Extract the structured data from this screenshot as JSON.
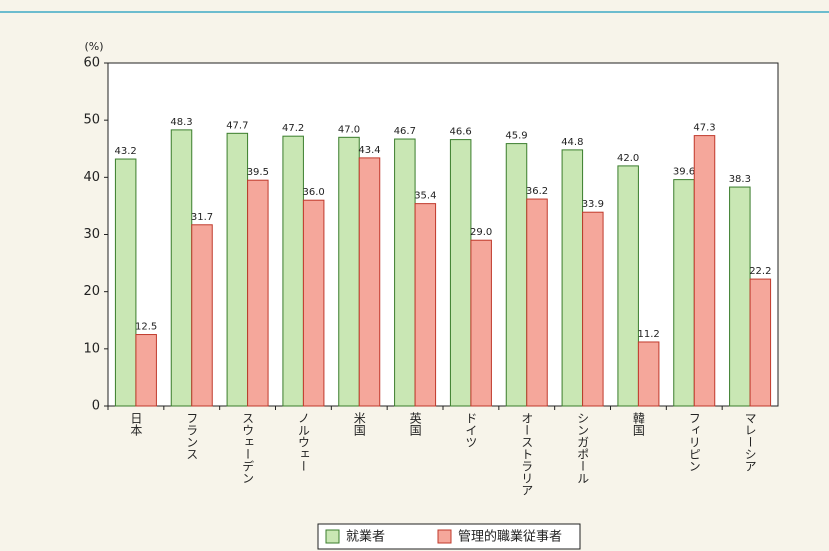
{
  "chart_data": {
    "type": "bar",
    "y_label": "(%)",
    "categories": [
      "日本",
      "フランス",
      "スウェーデン",
      "ノルウェー",
      "米国",
      "英国",
      "ドイツ",
      "オーストラリア",
      "シンガポール",
      "韓国",
      "フィリピン",
      "マレーシア"
    ],
    "series": [
      {
        "name": "就業者",
        "color": "#c9e7b4",
        "stroke": "#3a7d2c",
        "values": [
          43.2,
          48.3,
          47.7,
          47.2,
          47.0,
          46.7,
          46.6,
          45.9,
          44.8,
          42.0,
          39.6,
          38.3
        ],
        "value_labels": [
          "43.2",
          "48.3",
          "47.7",
          "47.2",
          "47.0",
          "46.7",
          "46.6",
          "45.9",
          "44.8",
          "42.0",
          "39.6",
          "38.3"
        ]
      },
      {
        "name": "管理的職業従事者",
        "color": "#f5a79b",
        "stroke": "#c0392b",
        "values": [
          12.5,
          31.7,
          39.5,
          36.0,
          43.4,
          35.4,
          29.0,
          36.2,
          33.9,
          11.2,
          47.3,
          22.2
        ],
        "value_labels": [
          "12.5",
          "31.7",
          "39.5",
          "36.0",
          "43.4",
          "35.4",
          "29.0",
          "36.2",
          "33.9",
          "11.2",
          "47.3",
          "22.2"
        ]
      }
    ],
    "ylim": [
      0,
      60
    ],
    "yticks": [
      0,
      10,
      20,
      30,
      40,
      50,
      60
    ]
  }
}
